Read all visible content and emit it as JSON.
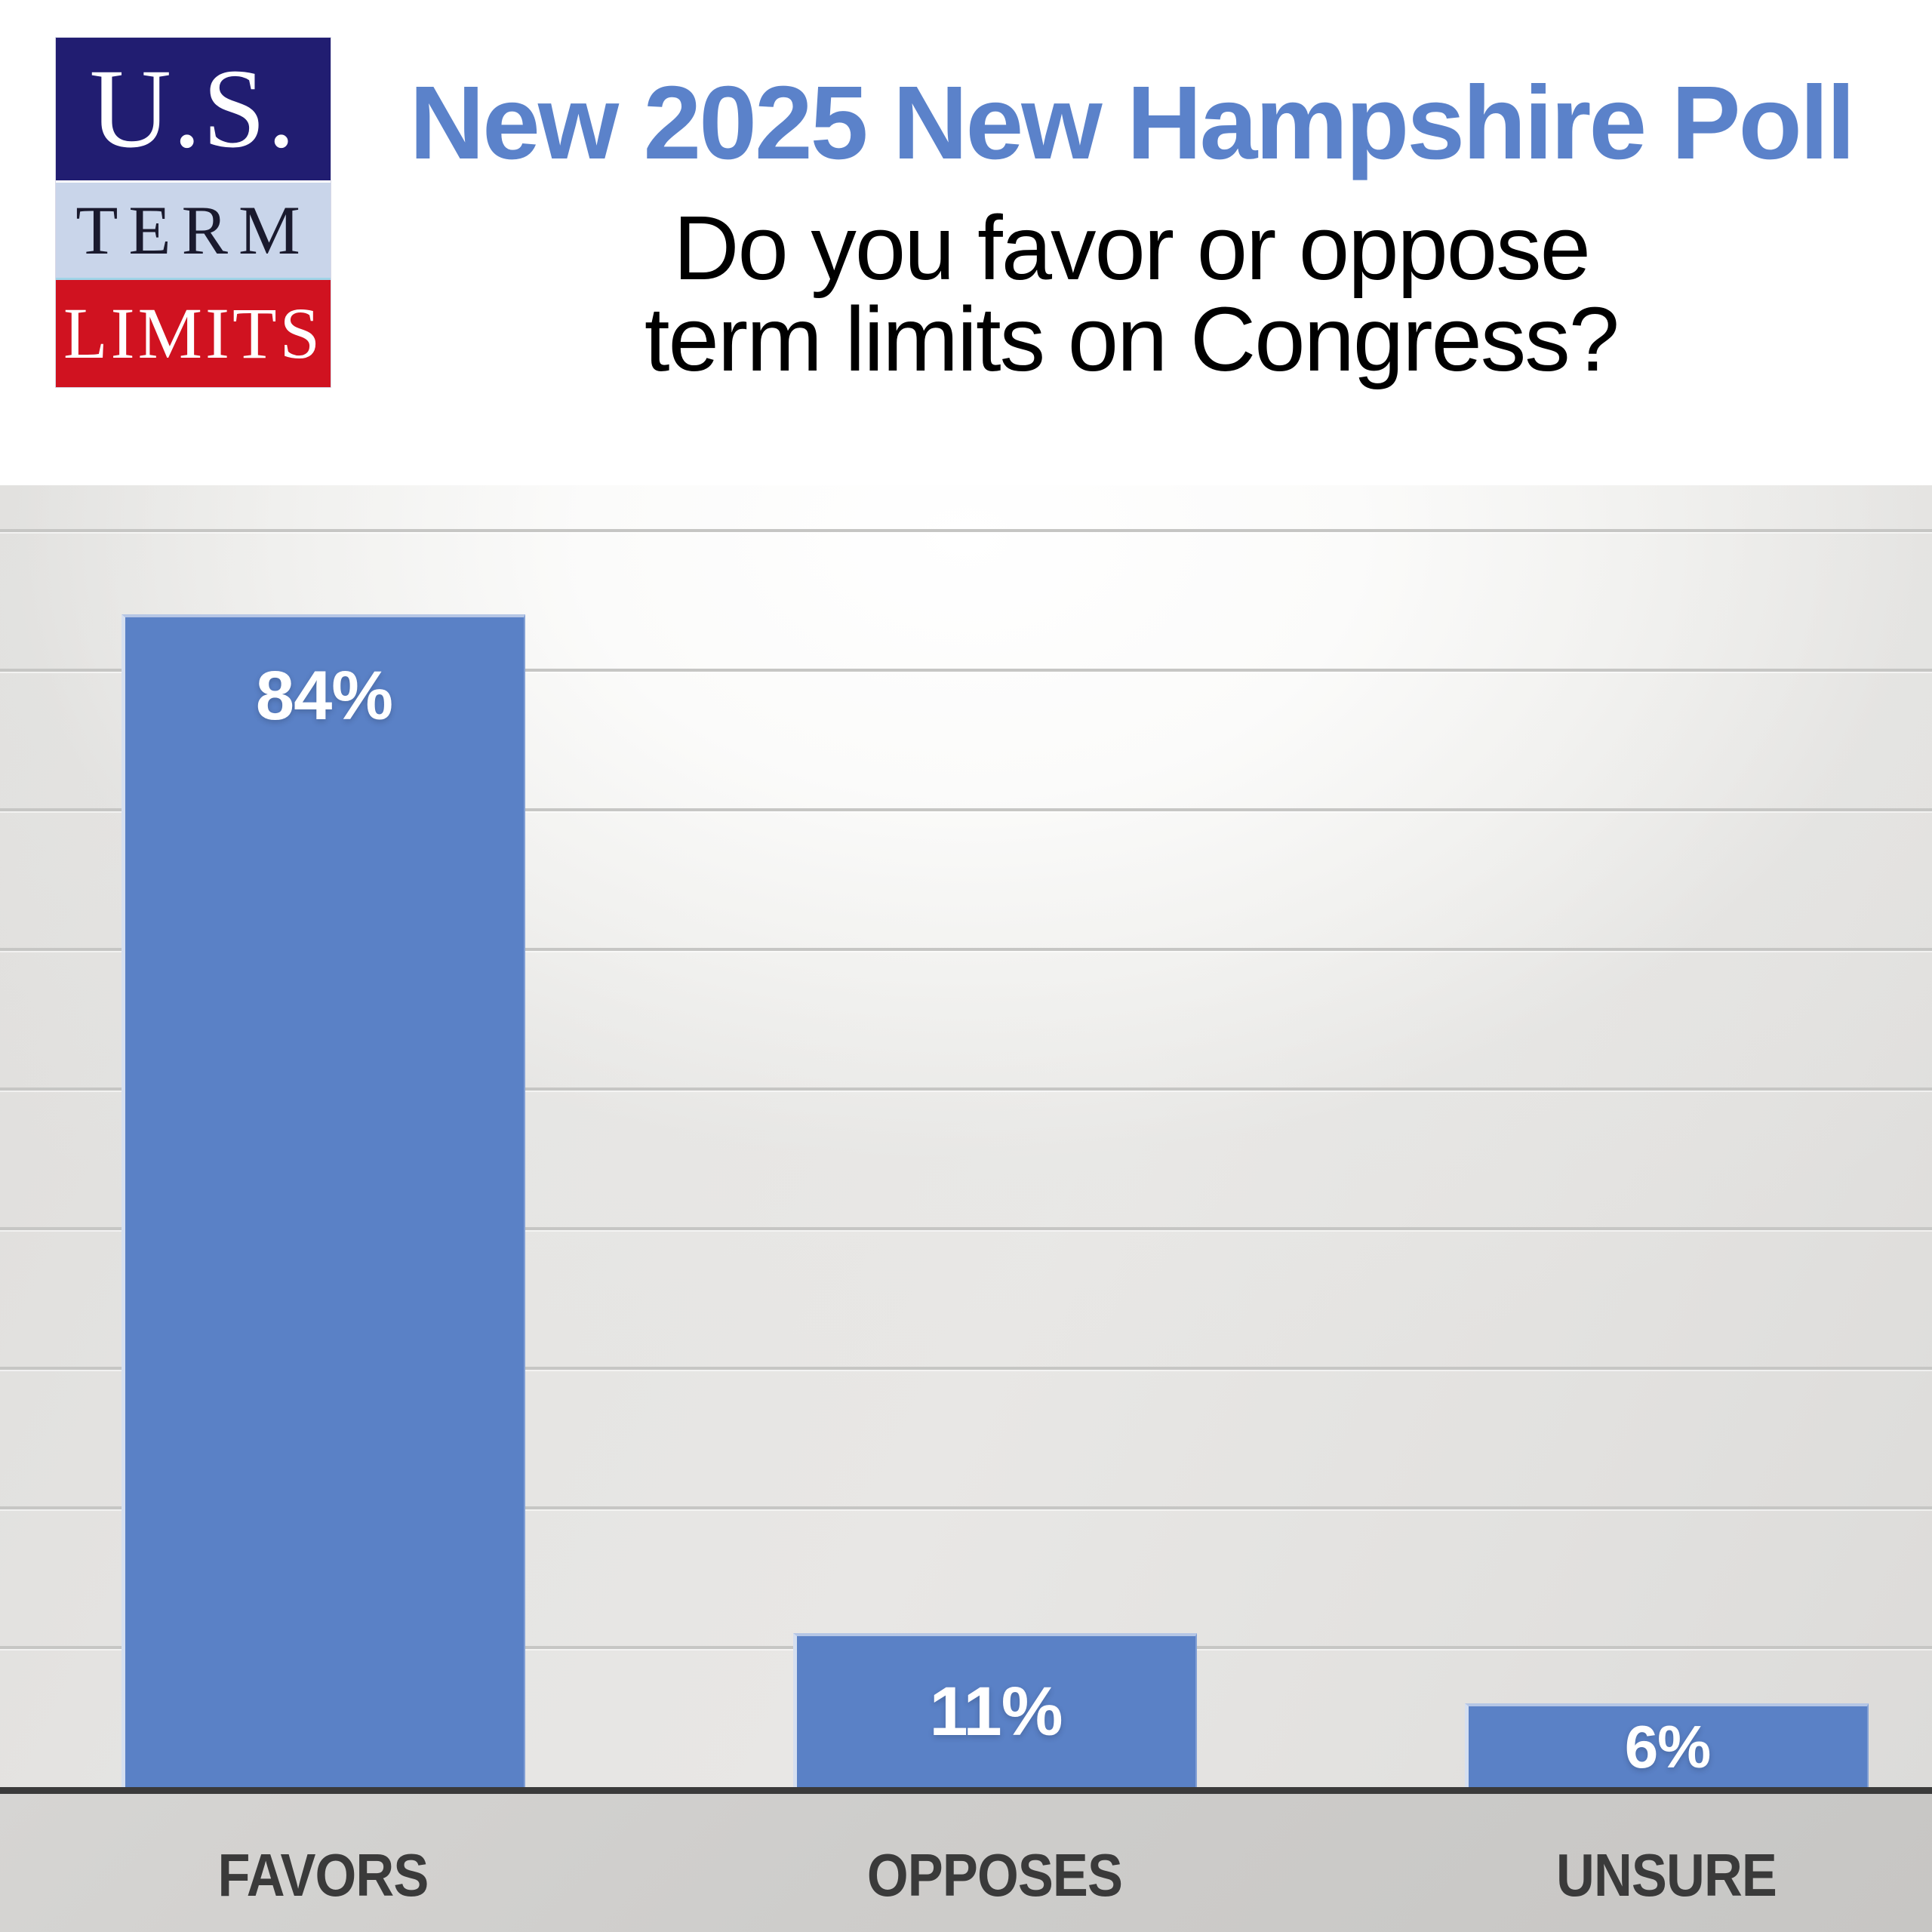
{
  "header": {
    "logo": {
      "line1": "U.S.",
      "line2": "TERM",
      "line3": "LIMITS"
    },
    "title": "New 2025 New Hampshire Poll",
    "subtitle_line1": "Do you favor or oppose",
    "subtitle_line2": "term limits on Congress?"
  },
  "chart_data": {
    "type": "bar",
    "title": "New 2025 New Hampshire Poll",
    "question": "Do you favor or oppose term limits on Congress?",
    "categories": [
      "FAVORS",
      "OPPOSES",
      "UNSURE"
    ],
    "values": [
      84,
      11,
      6
    ],
    "bars": [
      {
        "category": "FAVORS",
        "value": 84,
        "label": "84%"
      },
      {
        "category": "OPPOSES",
        "value": 11,
        "label": "11%"
      },
      {
        "category": "UNSURE",
        "value": 6,
        "label": "6%"
      }
    ],
    "ylim": [
      0,
      93
    ],
    "gridline_step": 10,
    "grid": "horizontal, every 10%, no tick labels",
    "legend": "none",
    "value_labels": "white, bold, inside bars"
  },
  "colors": {
    "bar_blue": "#5a81c6",
    "title_blue": "#5b82ca",
    "logo_navy": "#211d71",
    "logo_light_blue": "#c9d5ea",
    "logo_red": "#d01220",
    "logo_term_text": "#1a1a2e",
    "axis_line": "#3a3a3a",
    "gridline_gray": "#c6c6c4",
    "plot_gray": "#e3e2e0",
    "strip_gray": "#cccbc9",
    "category_text": "#3a3a3a"
  }
}
